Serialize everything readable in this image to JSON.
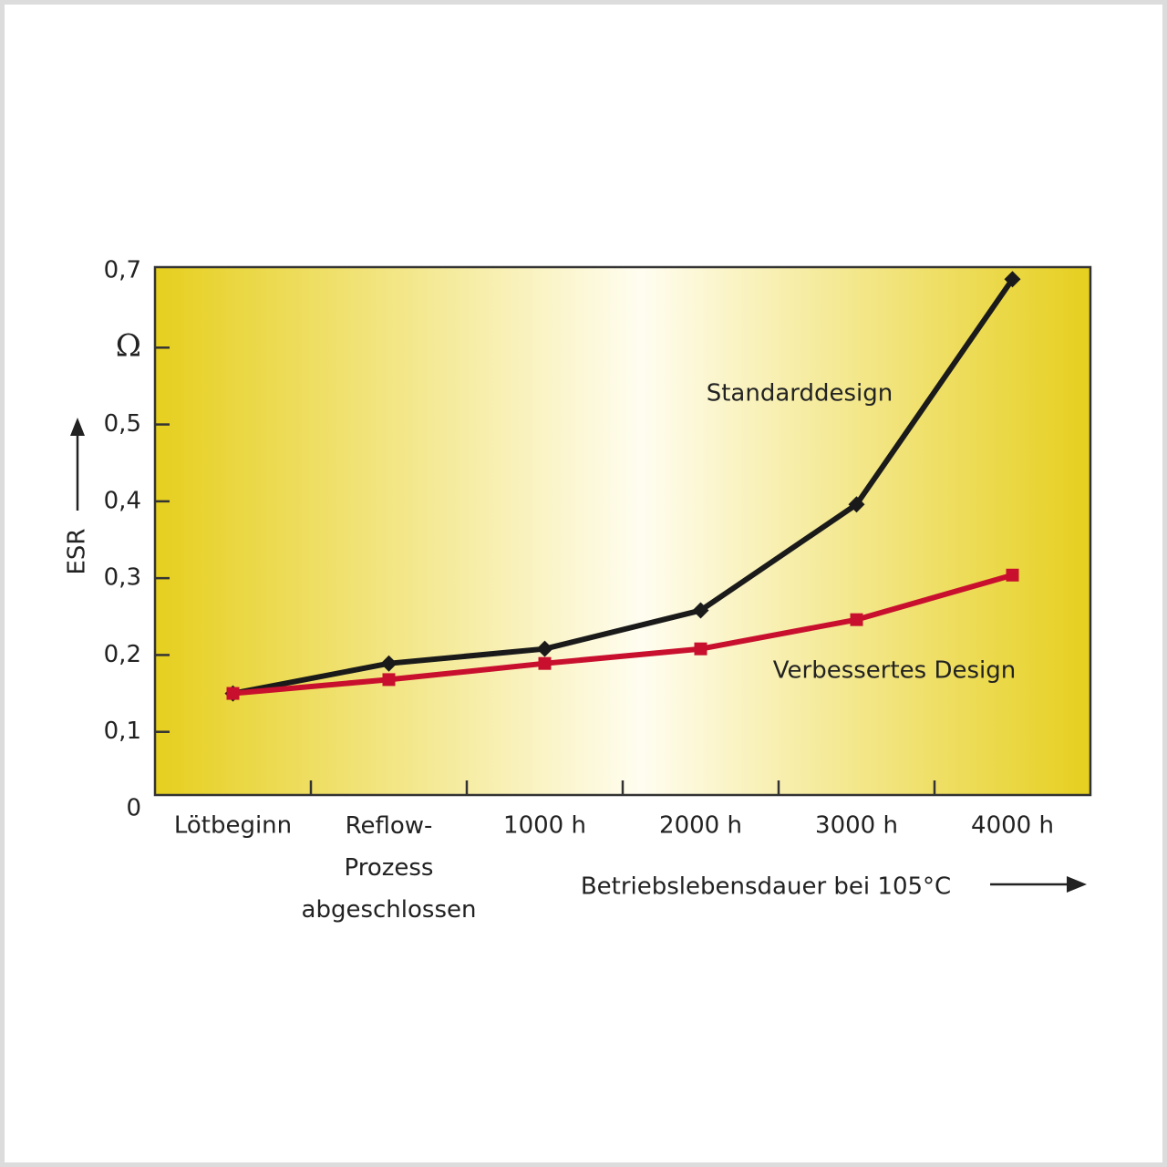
{
  "chart_data": {
    "type": "line",
    "categories": [
      "Lötbeginn",
      "Reflow-\nProzess\nabgeschlossen",
      "1000 h",
      "2000 h",
      "3000 h",
      "4000 h"
    ],
    "series": [
      {
        "name": "Standarddesign",
        "color": "#1a1a1a",
        "marker": "diamond",
        "values": [
          0.15,
          0.189,
          0.208,
          0.258,
          0.396,
          0.689
        ]
      },
      {
        "name": "Verbessertes Design",
        "color": "#c8102e",
        "marker": "square",
        "values": [
          0.15,
          0.168,
          0.189,
          0.208,
          0.246,
          0.304
        ]
      }
    ],
    "ylabel": "ESR",
    "xlabel": "Betriebslebensdauer bei 105°C",
    "ylim": [
      0,
      0.7
    ],
    "yticks": [
      {
        "value": 0,
        "label": "0"
      },
      {
        "value": 0.1,
        "label": "0,1"
      },
      {
        "value": 0.2,
        "label": "0,2"
      },
      {
        "value": 0.3,
        "label": "0,3"
      },
      {
        "value": 0.4,
        "label": "0,4"
      },
      {
        "value": 0.5,
        "label": "0,5"
      },
      {
        "value": 0.6,
        "label": "Ω"
      },
      {
        "value": 0.7,
        "label": "0,7"
      }
    ]
  }
}
